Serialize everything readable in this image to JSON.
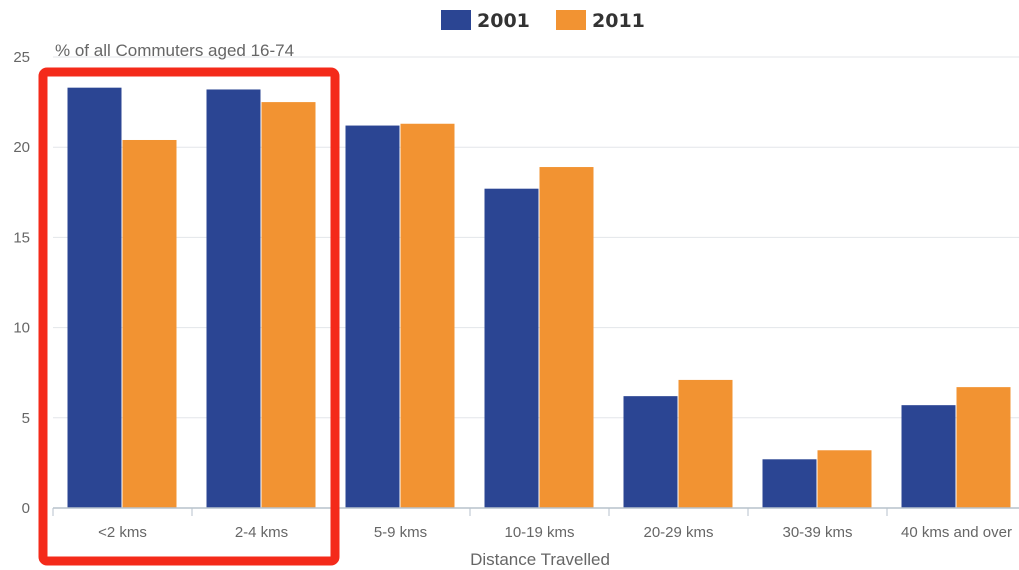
{
  "chart_data": {
    "type": "bar",
    "title": "",
    "ylabel": "% of all Commuters aged 16-74",
    "xlabel": "Distance Travelled",
    "ylim": [
      0,
      25
    ],
    "yticks": [
      0,
      5,
      10,
      15,
      20,
      25
    ],
    "grid": true,
    "legend_position": "top-center",
    "categories": [
      "<2 kms",
      "2-4 kms",
      "5-9 kms",
      "10-19 kms",
      "20-29 kms",
      "30-39 kms",
      "40 kms and over"
    ],
    "series": [
      {
        "name": "2001",
        "color": "#2b4593",
        "values": [
          23.3,
          23.2,
          21.2,
          17.7,
          6.2,
          2.7,
          5.7
        ]
      },
      {
        "name": "2011",
        "color": "#f29332",
        "values": [
          20.4,
          22.5,
          21.3,
          18.9,
          7.1,
          3.2,
          6.7
        ]
      }
    ],
    "highlight": {
      "categories": [
        "<2 kms",
        "2-4 kms"
      ],
      "color": "#f42a1a"
    }
  }
}
